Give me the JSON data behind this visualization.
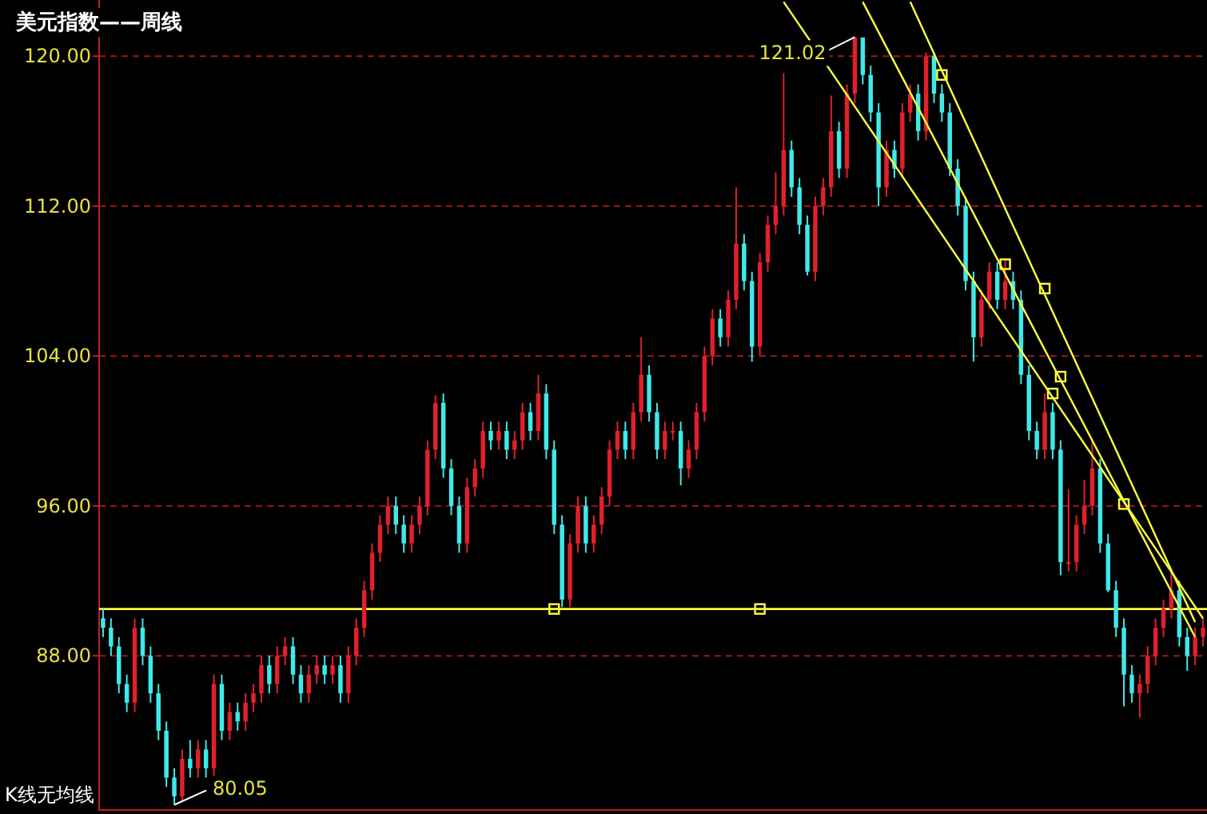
{
  "chart_data": {
    "type": "candlestick",
    "title": "美元指数——周线",
    "annotations": [
      "K线无均线",
      "121.02",
      "80.05"
    ],
    "categories": [
      null,
      null,
      null,
      null,
      null,
      null,
      null,
      null,
      null,
      null,
      null,
      null,
      null,
      null,
      null,
      null,
      null,
      null,
      null,
      null,
      null,
      null,
      null,
      null,
      null,
      null,
      null,
      null,
      null,
      null,
      null,
      null,
      null,
      null,
      null,
      null,
      null,
      null,
      null,
      null,
      null,
      null,
      null,
      null,
      null,
      null,
      null,
      null,
      null,
      null,
      null,
      null,
      null,
      null,
      null,
      null,
      null,
      null,
      null,
      null,
      null,
      null,
      null,
      null,
      null,
      null,
      null,
      null,
      null,
      null,
      null,
      null,
      null,
      null,
      null,
      null,
      null,
      null,
      null,
      null,
      null,
      null,
      null,
      null,
      null,
      null,
      null,
      null,
      null,
      null,
      null,
      null,
      null,
      null,
      null,
      null,
      null,
      null,
      null,
      null,
      null,
      null,
      null,
      null,
      null,
      null,
      null,
      null,
      null,
      null,
      null,
      null,
      null,
      null,
      null,
      null,
      null,
      null,
      null,
      null,
      null,
      null,
      null,
      null,
      null,
      null,
      null,
      null,
      null,
      null,
      null,
      null,
      null,
      null,
      null,
      null,
      null,
      null,
      null,
      null
    ],
    "ohlc": [
      [
        90,
        90.5,
        89,
        89.5
      ],
      [
        89.5,
        90,
        88,
        88.5
      ],
      [
        88.5,
        89,
        86,
        86.5
      ],
      [
        86.5,
        87,
        85,
        85.5
      ],
      [
        85.5,
        90,
        85,
        89.5
      ],
      [
        89.5,
        90,
        87.5,
        88
      ],
      [
        88,
        88.5,
        85.5,
        86
      ],
      [
        86,
        86.5,
        83.5,
        84
      ],
      [
        84,
        84.5,
        81,
        81.5
      ],
      [
        81.5,
        82,
        80.05,
        80.5
      ],
      [
        80.5,
        83,
        80.2,
        82.5
      ],
      [
        82.5,
        83.5,
        81.5,
        82
      ],
      [
        82,
        83.5,
        81.5,
        83
      ],
      [
        83,
        83.5,
        81.5,
        82
      ],
      [
        82,
        87,
        81.5,
        86.5
      ],
      [
        86.5,
        87,
        83.5,
        84
      ],
      [
        84,
        85.5,
        83.5,
        85
      ],
      [
        85,
        85.5,
        84,
        84.5
      ],
      [
        84.5,
        86,
        84,
        85.5
      ],
      [
        85.5,
        86.5,
        85,
        86
      ],
      [
        86,
        88,
        85.5,
        87.5
      ],
      [
        87.5,
        88,
        86,
        86.5
      ],
      [
        86.5,
        88.5,
        86,
        88
      ],
      [
        88,
        89,
        87.5,
        88.5
      ],
      [
        88.5,
        89,
        86.5,
        87
      ],
      [
        87,
        87.5,
        85.5,
        86
      ],
      [
        86,
        87.5,
        85.5,
        87
      ],
      [
        87,
        88,
        86.5,
        87.5
      ],
      [
        87.5,
        88,
        86.5,
        87
      ],
      [
        87,
        88,
        86.5,
        87.5
      ],
      [
        87.5,
        88,
        85.5,
        86
      ],
      [
        86,
        88.5,
        85.5,
        88
      ],
      [
        88,
        90,
        87.5,
        89.5
      ],
      [
        89.5,
        92,
        89,
        91.5
      ],
      [
        91.5,
        94,
        91,
        93.5
      ],
      [
        93.5,
        95.5,
        93,
        95
      ],
      [
        95,
        96.5,
        94.5,
        96
      ],
      [
        96,
        96.5,
        94.5,
        95
      ],
      [
        95,
        95.5,
        93.5,
        94
      ],
      [
        94,
        95.5,
        93.5,
        95
      ],
      [
        95,
        96.5,
        94.5,
        96
      ],
      [
        96,
        99.5,
        95.5,
        99
      ],
      [
        99,
        101.9,
        98.5,
        101.5
      ],
      [
        101.5,
        102,
        97.5,
        98
      ],
      [
        98,
        98.5,
        95.5,
        96
      ],
      [
        96,
        96.5,
        93.5,
        94
      ],
      [
        94,
        97.5,
        93.5,
        97
      ],
      [
        97,
        98.5,
        96.5,
        98
      ],
      [
        98,
        100.5,
        97.5,
        100
      ],
      [
        100,
        100.5,
        99,
        99.5
      ],
      [
        99.5,
        100.5,
        99,
        100
      ],
      [
        100,
        100.5,
        98.5,
        99
      ],
      [
        99,
        100,
        98.5,
        99.5
      ],
      [
        99.5,
        101.5,
        99,
        101
      ],
      [
        101,
        101.5,
        99.5,
        100
      ],
      [
        100,
        103,
        99.5,
        102
      ],
      [
        102,
        102.5,
        98.5,
        99
      ],
      [
        99,
        99.5,
        94.5,
        95
      ],
      [
        95,
        95.5,
        90.6,
        91
      ],
      [
        91,
        94.5,
        90.6,
        94
      ],
      [
        94,
        96.5,
        93.5,
        96
      ],
      [
        96,
        96.5,
        93.5,
        94
      ],
      [
        94,
        95.5,
        93.5,
        95
      ],
      [
        95,
        97,
        94.5,
        96.5
      ],
      [
        96.5,
        99.5,
        96,
        99
      ],
      [
        99,
        100.5,
        98.5,
        100
      ],
      [
        100,
        100.5,
        98.5,
        99
      ],
      [
        99,
        101.5,
        98.5,
        101
      ],
      [
        101,
        105,
        100.5,
        103
      ],
      [
        103,
        103.5,
        100.5,
        101
      ],
      [
        101,
        101.5,
        98.5,
        99
      ],
      [
        99,
        100.5,
        98.5,
        100
      ],
      [
        100,
        100.5,
        99.5,
        100
      ],
      [
        100,
        100.5,
        97.1,
        98
      ],
      [
        98,
        99.5,
        97.5,
        99
      ],
      [
        99,
        101.5,
        98.5,
        101
      ],
      [
        101,
        104.5,
        100.5,
        104
      ],
      [
        104,
        106.5,
        103.5,
        106
      ],
      [
        106,
        106.5,
        104.5,
        105
      ],
      [
        105,
        107.5,
        104.5,
        107
      ],
      [
        107,
        113,
        106.5,
        110
      ],
      [
        110,
        110.5,
        107.5,
        108
      ],
      [
        108,
        108.5,
        103.7,
        104.5
      ],
      [
        104.5,
        109.5,
        104,
        109
      ],
      [
        109,
        111.5,
        108.5,
        111
      ],
      [
        111,
        113.8,
        110.5,
        112
      ],
      [
        112,
        119.1,
        111.5,
        115
      ],
      [
        115,
        115.5,
        112.5,
        113
      ],
      [
        113,
        113.5,
        110.5,
        111
      ],
      [
        111,
        111.5,
        108.3,
        108.5
      ],
      [
        108.5,
        112.5,
        108,
        112
      ],
      [
        112,
        113.5,
        111.5,
        113
      ],
      [
        113,
        117.9,
        112.5,
        116
      ],
      [
        116,
        116.5,
        113.5,
        114
      ],
      [
        114,
        118.5,
        113.5,
        118
      ],
      [
        118,
        121.02,
        117.5,
        121
      ],
      [
        121,
        121,
        118.5,
        119
      ],
      [
        119,
        119.5,
        116.5,
        117
      ],
      [
        117,
        117.5,
        112,
        113
      ],
      [
        113,
        115.5,
        112.5,
        115
      ],
      [
        115,
        115.5,
        113.5,
        114
      ],
      [
        114,
        117.5,
        113.5,
        117
      ],
      [
        117,
        118.5,
        116.5,
        118
      ],
      [
        118,
        118.5,
        115.5,
        116
      ],
      [
        116,
        120.2,
        115.5,
        120
      ],
      [
        120,
        120.2,
        117.5,
        118
      ],
      [
        118,
        118.5,
        116.5,
        117
      ],
      [
        117,
        117.5,
        113.6,
        114
      ],
      [
        114,
        114.5,
        111.5,
        112
      ],
      [
        112,
        112.5,
        107.5,
        108
      ],
      [
        108,
        108.5,
        103.7,
        105
      ],
      [
        105,
        107.5,
        104.5,
        107
      ],
      [
        107,
        109,
        106.5,
        108.5
      ],
      [
        108.5,
        109,
        106.5,
        107
      ],
      [
        107,
        109.2,
        106.5,
        108
      ],
      [
        108,
        108.5,
        106.5,
        107
      ],
      [
        107,
        107.5,
        102.5,
        103
      ],
      [
        103,
        103.5,
        99.5,
        100
      ],
      [
        100,
        100.5,
        98.5,
        99
      ],
      [
        99,
        102,
        98.5,
        101
      ],
      [
        101,
        101.5,
        98.5,
        99
      ],
      [
        99,
        99.5,
        92.3,
        93
      ],
      [
        93,
        96.9,
        92.5,
        93
      ],
      [
        93,
        95.5,
        92.5,
        95
      ],
      [
        95,
        97.4,
        94.5,
        96
      ],
      [
        96,
        99.4,
        95.5,
        98
      ],
      [
        98,
        98.5,
        93.5,
        94
      ],
      [
        94,
        94.5,
        91.4,
        91.5
      ],
      [
        91.5,
        92,
        89,
        89.5
      ],
      [
        89.5,
        90,
        85.3,
        87
      ],
      [
        87,
        87.5,
        85.5,
        86
      ],
      [
        86,
        87,
        84.7,
        86.5
      ],
      [
        86.5,
        88.5,
        86,
        88
      ],
      [
        88,
        90,
        87.5,
        89.5
      ],
      [
        89.5,
        91,
        89,
        90.5
      ],
      [
        90.5,
        92.5,
        90,
        91.5
      ],
      [
        91.5,
        92,
        88.5,
        89
      ],
      [
        89,
        89.5,
        87.2,
        88
      ],
      [
        88,
        89.5,
        87.5,
        89
      ],
      [
        89,
        90,
        88.5,
        89.5
      ]
    ],
    "colors": [
      "#40e8e8",
      "#40e8e8",
      "#40e8e8",
      "#40e8e8",
      "#e0202a",
      "#40e8e8",
      "#40e8e8",
      "#40e8e8",
      "#40e8e8",
      "#40e8e8",
      "#e0202a",
      "#40e8e8",
      "#e0202a",
      "#40e8e8",
      "#e0202a",
      "#40e8e8",
      "#e0202a",
      "#40e8e8",
      "#e0202a",
      "#e0202a",
      "#e0202a",
      "#40e8e8",
      "#e0202a",
      "#e0202a",
      "#40e8e8",
      "#40e8e8",
      "#e0202a",
      "#e0202a",
      "#40e8e8",
      "#e0202a",
      "#40e8e8",
      "#e0202a",
      "#e0202a",
      "#e0202a",
      "#e0202a",
      "#e0202a",
      "#e0202a",
      "#40e8e8",
      "#40e8e8",
      "#e0202a",
      "#e0202a",
      "#e0202a",
      "#e0202a",
      "#40e8e8",
      "#40e8e8",
      "#40e8e8",
      "#e0202a",
      "#e0202a",
      "#e0202a",
      "#40e8e8",
      "#e0202a",
      "#40e8e8",
      "#e0202a",
      "#e0202a",
      "#40e8e8",
      "#e0202a",
      "#40e8e8",
      "#40e8e8",
      "#40e8e8",
      "#e0202a",
      "#e0202a",
      "#40e8e8",
      "#e0202a",
      "#e0202a",
      "#e0202a",
      "#e0202a",
      "#40e8e8",
      "#e0202a",
      "#e0202a",
      "#40e8e8",
      "#40e8e8",
      "#e0202a",
      "#e0202a",
      "#40e8e8",
      "#e0202a",
      "#e0202a",
      "#e0202a",
      "#e0202a",
      "#40e8e8",
      "#e0202a",
      "#e0202a",
      "#40e8e8",
      "#40e8e8",
      "#e0202a",
      "#e0202a",
      "#e0202a",
      "#e0202a",
      "#40e8e8",
      "#40e8e8",
      "#40e8e8",
      "#e0202a",
      "#e0202a",
      "#e0202a",
      "#40e8e8",
      "#e0202a",
      "#e0202a",
      "#40e8e8",
      "#40e8e8",
      "#40e8e8",
      "#e0202a",
      "#40e8e8",
      "#e0202a",
      "#e0202a",
      "#40e8e8",
      "#e0202a",
      "#40e8e8",
      "#40e8e8",
      "#40e8e8",
      "#40e8e8",
      "#40e8e8",
      "#40e8e8",
      "#e0202a",
      "#e0202a",
      "#40e8e8",
      "#e0202a",
      "#40e8e8",
      "#40e8e8",
      "#40e8e8",
      "#40e8e8",
      "#e0202a",
      "#40e8e8",
      "#40e8e8",
      "#e0202a",
      "#e0202a",
      "#e0202a",
      "#e0202a",
      "#40e8e8",
      "#40e8e8",
      "#40e8e8",
      "#40e8e8",
      "#40e8e8",
      "#e0202a",
      "#e0202a",
      "#e0202a",
      "#e0202a",
      "#e0202a",
      "#40e8e8",
      "#40e8e8",
      "#e0202a",
      "#e0202a"
    ],
    "series": [
      {
        "type": "line",
        "color": "#ffff40",
        "values": [
          null,
          null,
          null,
          null,
          null,
          null,
          null,
          null,
          null,
          null,
          null,
          null,
          null,
          null,
          null,
          null,
          null,
          null,
          null,
          null,
          null,
          null,
          null,
          null,
          null,
          null,
          null,
          null,
          null,
          null,
          null,
          null,
          null,
          null,
          null,
          null,
          null,
          null,
          null,
          null,
          null,
          null,
          null,
          null,
          null,
          null,
          null,
          null,
          null,
          null,
          null,
          null,
          null,
          null,
          null,
          null,
          null,
          null,
          null,
          null,
          null,
          null,
          null,
          null,
          null,
          null,
          null,
          null,
          null,
          null,
          null,
          null,
          null,
          null,
          null,
          null,
          null,
          null,
          null,
          null,
          null,
          null,
          null,
          null,
          null,
          null,
          122.9,
          null,
          null,
          null,
          null,
          null,
          null,
          null,
          null,
          null,
          null,
          null,
          null,
          null,
          null,
          null,
          null,
          null,
          null,
          null,
          null,
          null,
          null,
          null,
          null,
          null,
          null,
          null,
          null,
          null,
          null,
          null,
          null,
          null,
          null,
          null,
          null,
          null,
          null,
          null,
          null,
          null,
          null,
          null,
          null,
          null,
          null,
          null,
          null,
          null,
          null,
          null,
          null,
          90.0
        ]
      },
      {
        "type": "line",
        "color": "#ffff40",
        "values": [
          null,
          null,
          null,
          null,
          null,
          null,
          null,
          null,
          null,
          null,
          null,
          null,
          null,
          null,
          null,
          null,
          null,
          null,
          null,
          null,
          null,
          null,
          null,
          null,
          null,
          null,
          null,
          null,
          null,
          null,
          null,
          null,
          null,
          null,
          null,
          null,
          null,
          null,
          null,
          null,
          null,
          null,
          null,
          null,
          null,
          null,
          null,
          null,
          null,
          null,
          null,
          null,
          null,
          null,
          null,
          null,
          null,
          null,
          null,
          null,
          null,
          null,
          null,
          null,
          null,
          null,
          null,
          null,
          null,
          null,
          null,
          null,
          null,
          null,
          null,
          null,
          null,
          null,
          null,
          null,
          null,
          null,
          null,
          null,
          null,
          null,
          null,
          null,
          null,
          null,
          null,
          null,
          null,
          null,
          null,
          null,
          122.9,
          null,
          null,
          null,
          null,
          null,
          null,
          null,
          null,
          null,
          null,
          null,
          null,
          null,
          null,
          null,
          null,
          null,
          null,
          null,
          null,
          null,
          null,
          null,
          null,
          null,
          null,
          null,
          null,
          null,
          null,
          null,
          null,
          null,
          null,
          null,
          null,
          null,
          null,
          null,
          null,
          null,
          89.0,
          null
        ]
      },
      {
        "type": "line",
        "color": "#ffff40",
        "values": [
          null,
          null,
          null,
          null,
          null,
          null,
          null,
          null,
          null,
          null,
          null,
          null,
          null,
          null,
          null,
          null,
          null,
          null,
          null,
          null,
          null,
          null,
          null,
          null,
          null,
          null,
          null,
          null,
          null,
          null,
          null,
          null,
          null,
          null,
          null,
          null,
          null,
          null,
          null,
          null,
          null,
          null,
          null,
          null,
          null,
          null,
          null,
          null,
          null,
          null,
          null,
          null,
          null,
          null,
          null,
          null,
          null,
          null,
          null,
          null,
          null,
          null,
          null,
          null,
          null,
          null,
          null,
          null,
          null,
          null,
          null,
          null,
          null,
          null,
          null,
          null,
          null,
          null,
          null,
          null,
          null,
          null,
          null,
          null,
          null,
          null,
          null,
          null,
          null,
          null,
          null,
          null,
          null,
          null,
          null,
          null,
          null,
          null,
          null,
          null,
          null,
          null,
          122.9,
          null,
          null,
          null,
          null,
          null,
          null,
          null,
          null,
          null,
          null,
          null,
          null,
          null,
          null,
          null,
          null,
          null,
          null,
          null,
          null,
          null,
          null,
          null,
          null,
          null,
          null,
          null,
          null,
          null,
          null,
          null,
          null,
          null,
          null,
          null,
          89.8,
          null
        ]
      },
      {
        "type": "scatter",
        "marker": "square",
        "color": "#ffff40",
        "values": [
          null,
          null,
          null,
          null,
          null,
          null,
          null,
          null,
          null,
          null,
          null,
          null,
          null,
          null,
          null,
          null,
          null,
          null,
          null,
          null,
          null,
          null,
          null,
          null,
          null,
          null,
          null,
          null,
          null,
          null,
          null,
          null,
          null,
          null,
          null,
          null,
          null,
          null,
          null,
          null,
          null,
          null,
          null,
          null,
          null,
          null,
          null,
          null,
          null,
          null,
          null,
          null,
          null,
          null,
          null,
          null,
          null,
          90.5,
          null,
          null,
          null,
          null,
          null,
          null,
          null,
          null,
          null,
          null,
          null,
          null,
          null,
          null,
          null,
          null,
          null,
          null,
          null,
          null,
          null,
          null,
          null,
          null,
          null,
          90.5,
          null,
          null,
          null,
          null,
          null,
          null,
          null,
          null,
          null,
          null,
          null,
          null,
          null,
          null,
          null,
          null,
          null,
          null,
          null,
          null,
          null,
          null,
          119.0,
          null,
          null,
          null,
          null,
          null,
          null,
          null,
          108.9,
          null,
          null,
          null,
          null,
          107.6,
          102.0,
          102.9,
          null,
          null,
          null,
          null,
          null,
          null,
          null,
          96.1,
          null,
          null,
          null,
          null,
          null,
          null,
          null,
          null,
          null,
          null
        ]
      }
    ],
    "ylim": [
      79.9,
      123.0
    ],
    "yticks": [
      {
        "value": 88,
        "label": "88.00"
      },
      {
        "value": 96,
        "label": "96.00"
      },
      {
        "value": 104,
        "label": "104.00"
      },
      {
        "value": 112,
        "label": "112.00"
      },
      {
        "value": 120,
        "label": "120.00"
      }
    ],
    "grid": "y",
    "ref_lines": [
      {
        "axis": "y",
        "value": 90.5,
        "color": "#ffff40"
      }
    ]
  }
}
